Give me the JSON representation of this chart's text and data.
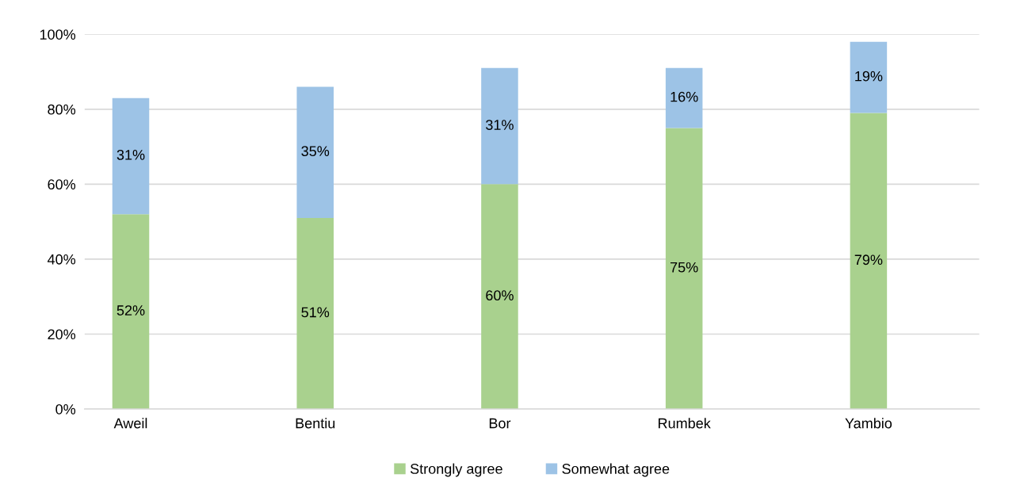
{
  "chart_data": {
    "type": "bar",
    "stacked": true,
    "categories": [
      "Aweil",
      "Bentiu",
      "Bor",
      "Rumbek",
      "Yambio"
    ],
    "series": [
      {
        "name": "Strongly agree",
        "color": "#a9d18e",
        "values": [
          52,
          51,
          60,
          75,
          79
        ],
        "value_labels": [
          "52%",
          "51%",
          "60%",
          "75%",
          "79%"
        ]
      },
      {
        "name": "Somewhat agree",
        "color": "#9dc3e6",
        "values": [
          31,
          35,
          31,
          16,
          19
        ],
        "value_labels": [
          "31%",
          "35%",
          "31%",
          "16%",
          "19%"
        ]
      }
    ],
    "ylim": [
      0,
      100
    ],
    "yticks": [
      {
        "value": 0,
        "label": "0%"
      },
      {
        "value": 20,
        "label": "20%"
      },
      {
        "value": 40,
        "label": "40%"
      },
      {
        "value": 60,
        "label": "60%"
      },
      {
        "value": 80,
        "label": "80%"
      },
      {
        "value": 100,
        "label": "100%"
      }
    ],
    "grid": "y",
    "legend": "bottom"
  }
}
